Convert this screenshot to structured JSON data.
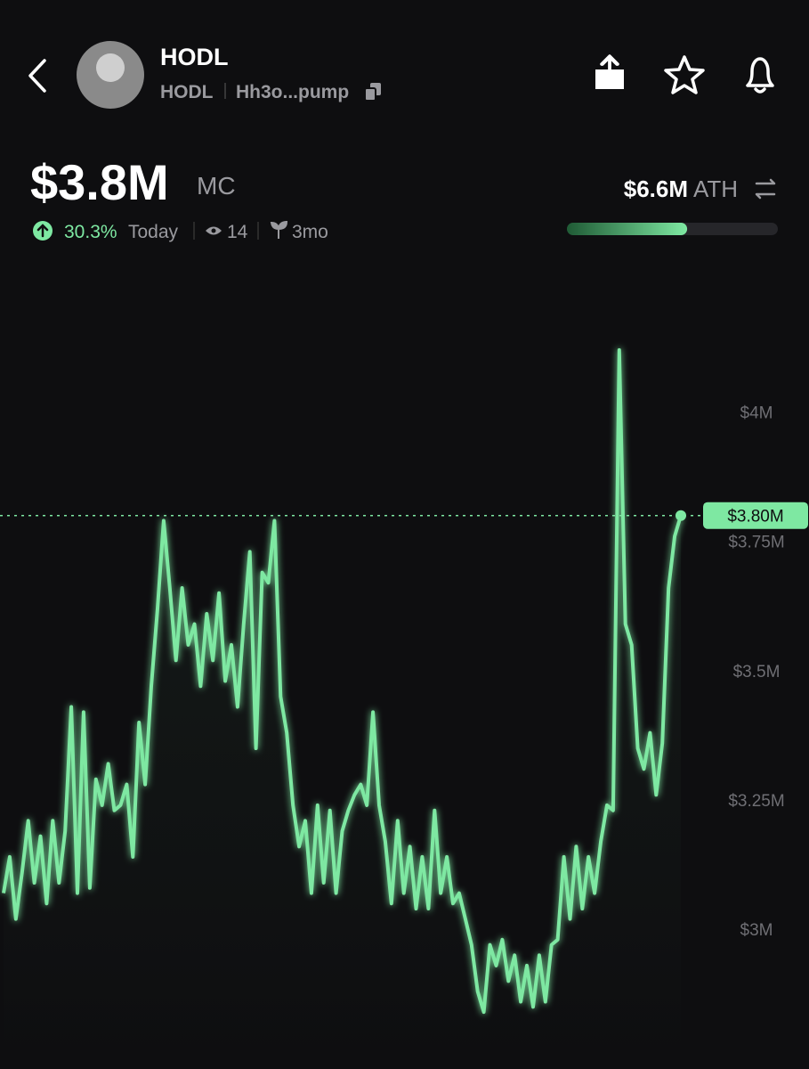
{
  "header": {
    "name": "HODL",
    "ticker": "HODL",
    "address": "Hh3o...pump"
  },
  "market_cap": {
    "value": "$3.8M",
    "label": "MC",
    "change": "30.3%",
    "period": "Today",
    "views": "14",
    "age": "3mo"
  },
  "ath": {
    "value": "$6.6M",
    "label": "ATH",
    "progress": 57
  },
  "chart_data": {
    "type": "line",
    "color": "#7ee8a2",
    "values": [
      3.07,
      3.14,
      3.02,
      3.11,
      3.21,
      3.09,
      3.18,
      3.05,
      3.21,
      3.09,
      3.19,
      3.43,
      3.07,
      3.42,
      3.08,
      3.29,
      3.24,
      3.32,
      3.23,
      3.24,
      3.28,
      3.14,
      3.4,
      3.28,
      3.47,
      3.62,
      3.79,
      3.66,
      3.52,
      3.66,
      3.55,
      3.59,
      3.47,
      3.61,
      3.52,
      3.65,
      3.48,
      3.55,
      3.43,
      3.59,
      3.73,
      3.35,
      3.69,
      3.67,
      3.79,
      3.45,
      3.38,
      3.24,
      3.16,
      3.21,
      3.07,
      3.24,
      3.09,
      3.23,
      3.07,
      3.19,
      3.23,
      3.26,
      3.28,
      3.24,
      3.42,
      3.24,
      3.17,
      3.05,
      3.21,
      3.07,
      3.16,
      3.04,
      3.14,
      3.04,
      3.23,
      3.07,
      3.14,
      3.05,
      3.07,
      3.02,
      2.97,
      2.88,
      2.84,
      2.97,
      2.93,
      2.98,
      2.9,
      2.95,
      2.86,
      2.93,
      2.85,
      2.95,
      2.86,
      2.97,
      2.98,
      3.14,
      3.02,
      3.16,
      3.04,
      3.14,
      3.07,
      3.17,
      3.24,
      3.23,
      4.12,
      3.59,
      3.55,
      3.35,
      3.31,
      3.38,
      3.26,
      3.36,
      3.66,
      3.76,
      3.8
    ],
    "last_value": {
      "value": 3.8,
      "label": "$3.80M"
    },
    "ylim": [
      2.73,
      4.28
    ],
    "yticks": [
      {
        "value": 3,
        "label": "$3M"
      },
      {
        "value": 3.25,
        "label": "$3.25M"
      },
      {
        "value": 3.5,
        "label": "$3.5M"
      },
      {
        "value": 3.75,
        "label": "$3.75M"
      },
      {
        "value": 4,
        "label": "$4M"
      }
    ]
  }
}
